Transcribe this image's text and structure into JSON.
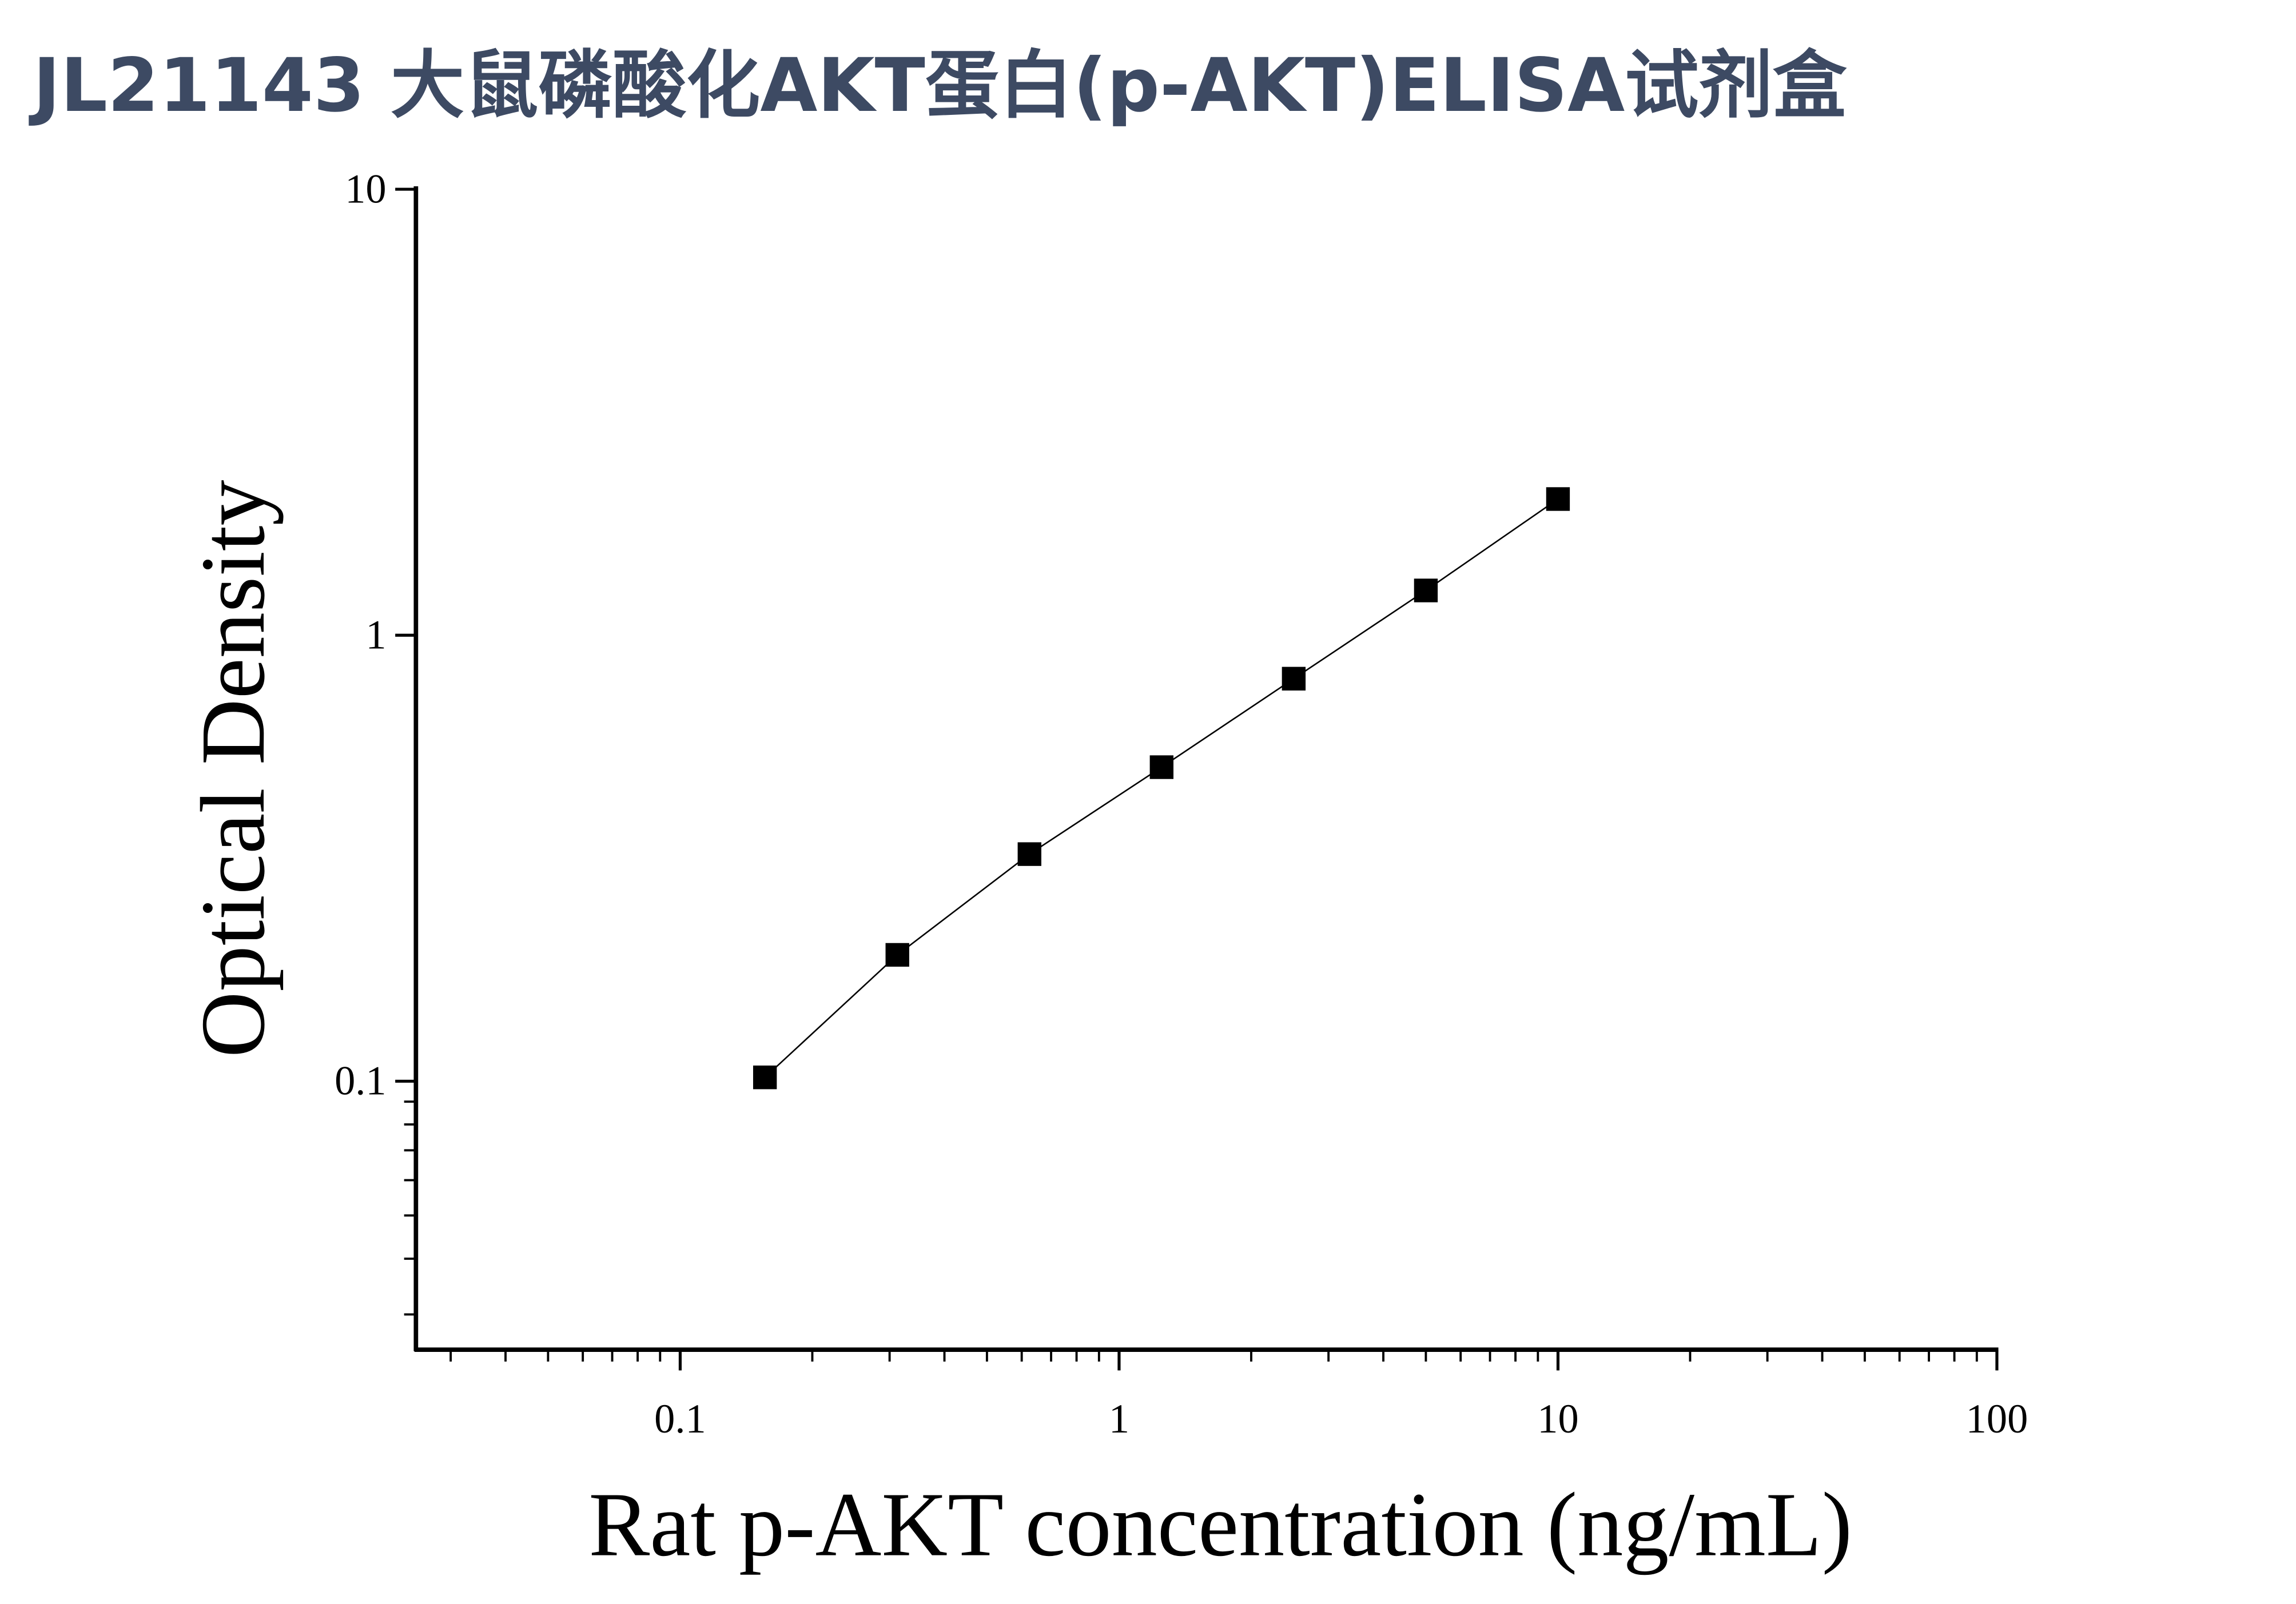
{
  "chart_data": {
    "type": "scatter",
    "title": "JL21143 大鼠磷酸化AKT蛋白(p-AKT)ELISA试剂盒",
    "x_label": "Rat p-AKT concentration (ng/mL)",
    "y_label": "Optical Density",
    "x": [
      0.156,
      0.3125,
      0.625,
      1.25,
      2.5,
      5,
      10
    ],
    "series": [
      {
        "color": "#000000",
        "values": [
          0.102,
          0.192,
          0.323,
          0.506,
          0.799,
          1.26,
          2.02
        ]
      }
    ],
    "xlim": [
      0.025,
      100
    ],
    "ylim": [
      0.025,
      10
    ],
    "xticks": [
      0.1,
      1,
      10,
      100
    ],
    "yticks": [
      0.1,
      1,
      10
    ],
    "xscale": "log",
    "yscale": "log",
    "grid": false
  }
}
